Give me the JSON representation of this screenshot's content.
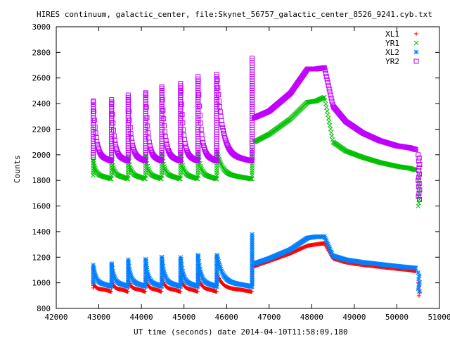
{
  "chart_data": {
    "type": "scatter",
    "title": "HIRES continuum, galactic_center, file:Skynet_56757_galactic_center_8526_9241.cyb.txt",
    "xlabel": "UT time (seconds) date 2014-04-10T11:58:09.180",
    "ylabel": "Counts",
    "xlim": [
      42000,
      51000
    ],
    "ylim": [
      800,
      3000
    ],
    "xticks": [
      "42000",
      "43000",
      "44000",
      "45000",
      "46000",
      "47000",
      "48000",
      "49000",
      "50000",
      "51000"
    ],
    "yticks": [
      "800",
      "1000",
      "1200",
      "1400",
      "1600",
      "1800",
      "2000",
      "2200",
      "2400",
      "2600",
      "2800",
      "3000"
    ],
    "legend_position": "top-right",
    "series": [
      {
        "name": "XL1",
        "marker": "+",
        "color": "#ff0000",
        "base": 930,
        "peak_extra": [
          70,
          90,
          100,
          110,
          120,
          130,
          140,
          150,
          160
        ],
        "segment": [
          [
            46650,
            1130
          ],
          [
            47000,
            1170
          ],
          [
            47500,
            1230
          ],
          [
            47900,
            1290
          ],
          [
            48100,
            1300
          ],
          [
            48300,
            1310
          ],
          [
            48500,
            1190
          ],
          [
            48800,
            1160
          ],
          [
            49200,
            1140
          ],
          [
            49600,
            1125
          ],
          [
            50000,
            1110
          ],
          [
            50300,
            1100
          ],
          [
            50450,
            1090
          ]
        ],
        "end_drop": [
          900,
          1000
        ]
      },
      {
        "name": "YR1",
        "marker": "x",
        "color": "#00c000",
        "base": 1810,
        "peak_extra": [
          150,
          170,
          180,
          190,
          200,
          210,
          220,
          230,
          240
        ],
        "segment": [
          [
            46650,
            2100
          ],
          [
            47000,
            2160
          ],
          [
            47500,
            2280
          ],
          [
            47900,
            2410
          ],
          [
            48100,
            2420
          ],
          [
            48300,
            2450
          ],
          [
            48500,
            2100
          ],
          [
            48800,
            2030
          ],
          [
            49200,
            1980
          ],
          [
            49600,
            1940
          ],
          [
            50000,
            1910
          ],
          [
            50300,
            1895
          ],
          [
            50450,
            1880
          ]
        ],
        "end_drop": [
          1600,
          1850
        ]
      },
      {
        "name": "XL2",
        "marker": "*",
        "color": "#0080ff",
        "base": 970,
        "peak_extra": [
          170,
          190,
          210,
          220,
          230,
          240,
          250,
          260,
          410
        ],
        "segment": [
          [
            46650,
            1150
          ],
          [
            47000,
            1190
          ],
          [
            47500,
            1260
          ],
          [
            47900,
            1350
          ],
          [
            48100,
            1360
          ],
          [
            48300,
            1360
          ],
          [
            48500,
            1210
          ],
          [
            48800,
            1180
          ],
          [
            49200,
            1160
          ],
          [
            49600,
            1145
          ],
          [
            50000,
            1130
          ],
          [
            50300,
            1120
          ],
          [
            50450,
            1115
          ]
        ],
        "end_drop": [
          930,
          1100
        ]
      },
      {
        "name": "YR2",
        "marker": "square",
        "color": "#c000ff",
        "base": 1950,
        "peak_extra": [
          470,
          480,
          520,
          540,
          580,
          610,
          660,
          690,
          820
        ],
        "segment": [
          [
            46650,
            2290
          ],
          [
            47000,
            2340
          ],
          [
            47500,
            2480
          ],
          [
            47900,
            2670
          ],
          [
            48100,
            2670
          ],
          [
            48300,
            2680
          ],
          [
            48500,
            2380
          ],
          [
            48800,
            2260
          ],
          [
            49200,
            2170
          ],
          [
            49600,
            2110
          ],
          [
            50000,
            2070
          ],
          [
            50300,
            2055
          ],
          [
            50450,
            2040
          ]
        ],
        "end_drop": [
          1650,
          2000
        ]
      }
    ],
    "peak_times": [
      42870,
      43300,
      43690,
      44100,
      44480,
      44920,
      45330,
      45770,
      46600
    ]
  }
}
